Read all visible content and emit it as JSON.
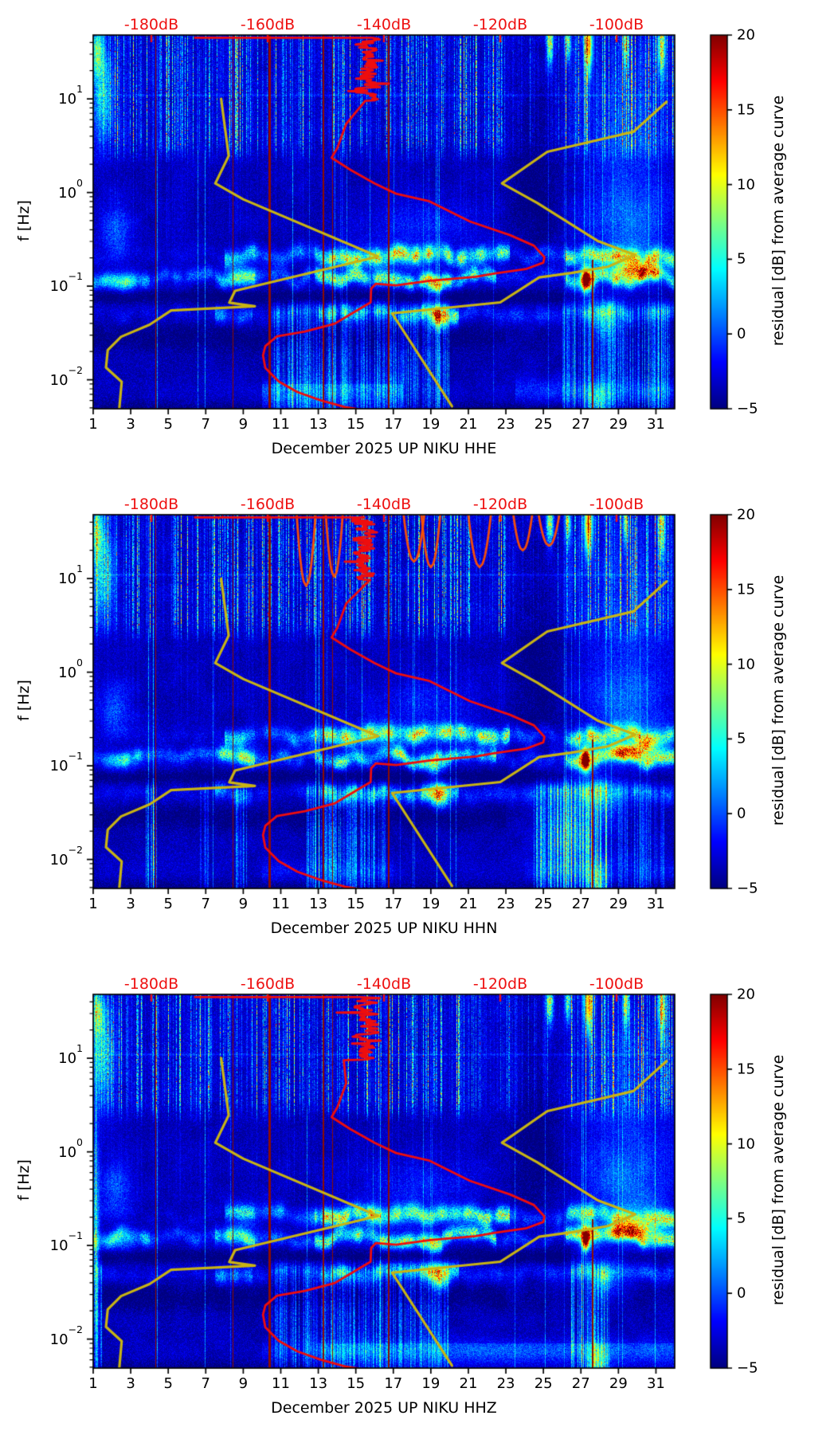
{
  "panels": [
    {
      "channel": "HHE",
      "xlabel": "December 2025 UP NIKU  HHE"
    },
    {
      "channel": "HHN",
      "xlabel": "December 2025 UP NIKU  HHN"
    },
    {
      "channel": "HHZ",
      "xlabel": "December 2025 UP NIKU  HHZ"
    }
  ],
  "y_axis": {
    "label": "f [Hz]",
    "ticks": [
      {
        "mantissa": "10",
        "exp": "1",
        "value": 10
      },
      {
        "mantissa": "10",
        "exp": "0",
        "value": 1
      },
      {
        "mantissa": "10",
        "exp": "−1",
        "value": 0.1
      },
      {
        "mantissa": "10",
        "exp": "−2",
        "value": 0.01
      }
    ]
  },
  "x_axis": {
    "tick_labels": [
      "1",
      "3",
      "5",
      "7",
      "9",
      "11",
      "13",
      "15",
      "17",
      "19",
      "21",
      "23",
      "25",
      "27",
      "29",
      "31"
    ],
    "tick_values": [
      1,
      3,
      5,
      7,
      9,
      11,
      13,
      15,
      17,
      19,
      21,
      23,
      25,
      27,
      29,
      31
    ]
  },
  "top_axis": {
    "tick_labels": [
      "-180dB",
      "-160dB",
      "-140dB",
      "-120dB",
      "-100dB"
    ],
    "tick_values": [
      -180,
      -160,
      -140,
      -120,
      -100
    ]
  },
  "colorbar": {
    "label": "residual [dB] from average curve",
    "tick_labels": [
      "20",
      "15",
      "10",
      "5",
      "0",
      "−5"
    ],
    "tick_values": [
      20,
      15,
      10,
      5,
      0,
      -5
    ]
  },
  "colors": {
    "red_curve": "#ee0d0d",
    "yellow_curve": "#c8b414",
    "top_axis_text": "#ee1111",
    "gap_line": "#8b0800",
    "background": "#ffffff"
  },
  "chart_data": {
    "type": "heatmap",
    "description": "Daily seismic power-spectral-density residual spectrograms (residual from station average curve) for station UP NIKU, channels HHE/HHN/HHZ, December 2025",
    "x_range_days": [
      1,
      32
    ],
    "f_range_hz": [
      0.0049,
      48
    ],
    "db_axis_range": [
      -190,
      -90
    ],
    "residual_range_db": [
      -5,
      20
    ],
    "colormap": "jet",
    "curves": {
      "station_average_db_jagged_segment": {
        "f_from": 45,
        "f_to": 9.5,
        "db_mean": -143,
        "db_jitter": 3
      },
      "station_average_db": [
        [
          46.8,
          -172.5
        ],
        [
          46.8,
          -146
        ],
        [
          5.4,
          -146.5
        ],
        [
          3.0,
          -148
        ],
        [
          2.35,
          -149
        ],
        [
          1.75,
          -145.8
        ],
        [
          1.25,
          -141.6
        ],
        [
          0.97,
          -137.9
        ],
        [
          0.81,
          -132.3
        ],
        [
          0.49,
          -125.2
        ],
        [
          0.35,
          -118.3
        ],
        [
          0.27,
          -114.2
        ],
        [
          0.204,
          -112.4
        ],
        [
          0.178,
          -112.6
        ],
        [
          0.152,
          -115.6
        ],
        [
          0.136,
          -121.1
        ],
        [
          0.126,
          -124.2
        ],
        [
          0.114,
          -132.1
        ],
        [
          0.102,
          -137.9
        ],
        [
          0.106,
          -141.4
        ],
        [
          0.094,
          -142.2
        ],
        [
          0.067,
          -142.3
        ],
        [
          0.052,
          -145.3
        ],
        [
          0.0396,
          -148.5
        ],
        [
          0.0327,
          -153.6
        ],
        [
          0.0291,
          -158.4
        ],
        [
          0.0229,
          -160.4
        ],
        [
          0.0182,
          -160.8
        ],
        [
          0.0134,
          -160.4
        ],
        [
          0.0096,
          -158.1
        ],
        [
          0.0074,
          -154.9
        ],
        [
          0.006,
          -150.8
        ],
        [
          0.0051,
          -146.7
        ],
        [
          0.0048,
          -144.0
        ]
      ],
      "noise_model_low_db": [
        [
          10,
          -168
        ],
        [
          2.46,
          -166.7
        ],
        [
          1.25,
          -169
        ],
        [
          0.846,
          -164.2
        ],
        [
          0.207,
          -141
        ],
        [
          0.089,
          -165.6
        ],
        [
          0.0665,
          -166.6
        ],
        [
          0.061,
          -162.2
        ],
        [
          0.055,
          -176.6
        ],
        [
          0.0387,
          -180.3
        ],
        [
          0.0288,
          -185.2
        ],
        [
          0.0207,
          -187.5
        ],
        [
          0.0135,
          -187.8
        ],
        [
          0.0095,
          -185.1
        ],
        [
          0.005,
          -185.5
        ]
      ],
      "noise_model_high_db": [
        [
          9.3,
          -91.4
        ],
        [
          4.45,
          -97.1
        ],
        [
          2.72,
          -111.9
        ],
        [
          1.25,
          -119.7
        ],
        [
          0.77,
          -113.6
        ],
        [
          0.305,
          -103.3
        ],
        [
          0.215,
          -96.8
        ],
        [
          0.161,
          -101.5
        ],
        [
          0.138,
          -107.8
        ],
        [
          0.124,
          -113.3
        ],
        [
          0.067,
          -120
        ],
        [
          0.0512,
          -138.6
        ],
        [
          0.0052,
          -128.3
        ]
      ]
    },
    "gap_days": [
      4.31,
      8.43,
      10.34,
      13.23,
      13.74,
      16.71,
      27.58
    ],
    "hot_spots": [
      {
        "day": 27.25,
        "f_hz": 0.115,
        "residual_db": 20
      },
      {
        "day": 29.7,
        "f_hz": 0.14,
        "residual_db": 15
      },
      {
        "day": 19.5,
        "f_hz": 0.047,
        "residual_db": 15
      },
      {
        "day": 19.2,
        "f_hz": 0.1,
        "residual_db": 12
      }
    ]
  }
}
